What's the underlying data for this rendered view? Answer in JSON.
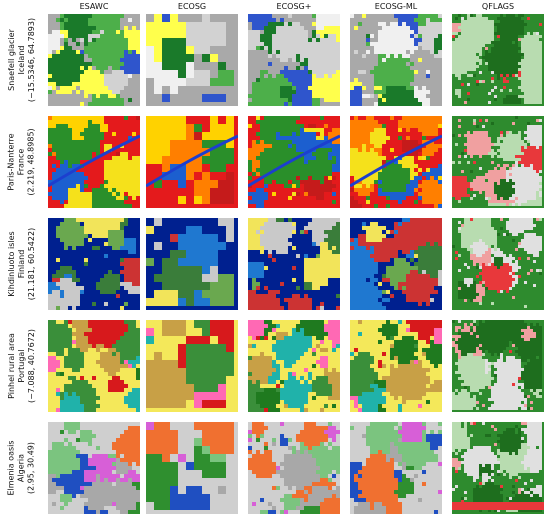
{
  "columns": [
    "ESAWC",
    "ECOSG",
    "ECOSG+",
    "ECOSG-ML",
    "QFLAGS"
  ],
  "rows": [
    {
      "lines": [
        "Snaefell glacier",
        "Iceland",
        "(−15.5346, 64.7893)"
      ],
      "key": "glacier"
    },
    {
      "lines": [
        "Paris-Nanterre",
        "France",
        "(2.219, 48.8985)"
      ],
      "key": "urban"
    },
    {
      "lines": [
        "Kihdinluoto isles",
        "Finland",
        "(21.181, 60.5422)"
      ],
      "key": "isles"
    },
    {
      "lines": [
        "Pinhel rural area",
        "Portugal",
        "(−7.088, 40.7672)"
      ],
      "key": "rural"
    },
    {
      "lines": [
        "Elmenia oasis",
        "Algeria",
        "(2.95, 30.49)"
      ],
      "key": "oasis"
    }
  ],
  "palettes": {
    "glacier": {
      "base": "#a9a9a9",
      "others": [
        "#f0f0f0",
        "#d2d2d2",
        "#ffff4c",
        "#4daf4a",
        "#1a7a2a",
        "#2f55cc"
      ]
    },
    "urban": {
      "base": "#e41a1c",
      "others": [
        "#ffd200",
        "#ff7f00",
        "#c51b1b",
        "#1c5fcf",
        "#2a8f2a",
        "#f5e11b"
      ]
    },
    "isles": {
      "base": "#00208f",
      "others": [
        "#1f78d0",
        "#3a7d3a",
        "#6aa84f",
        "#cc3333",
        "#c9c9c9",
        "#f2e45a"
      ]
    },
    "rural": {
      "base": "#f4e85a",
      "others": [
        "#3a8f3a",
        "#ff69b4",
        "#d7191c",
        "#1f7a1f",
        "#20b2aa",
        "#c8a046"
      ]
    },
    "oasis": {
      "base": "#cfcfcf",
      "others": [
        "#a8a8a8",
        "#1f4fc1",
        "#2f8f2f",
        "#f07030",
        "#d75fd7",
        "#7bc47f"
      ]
    },
    "qflags": {
      "base": "#2e8b2e",
      "others": [
        "#f0a0a0",
        "#e0e0e0",
        "#e8383b",
        "#1e6e1e",
        "#b8dcb0"
      ]
    }
  }
}
